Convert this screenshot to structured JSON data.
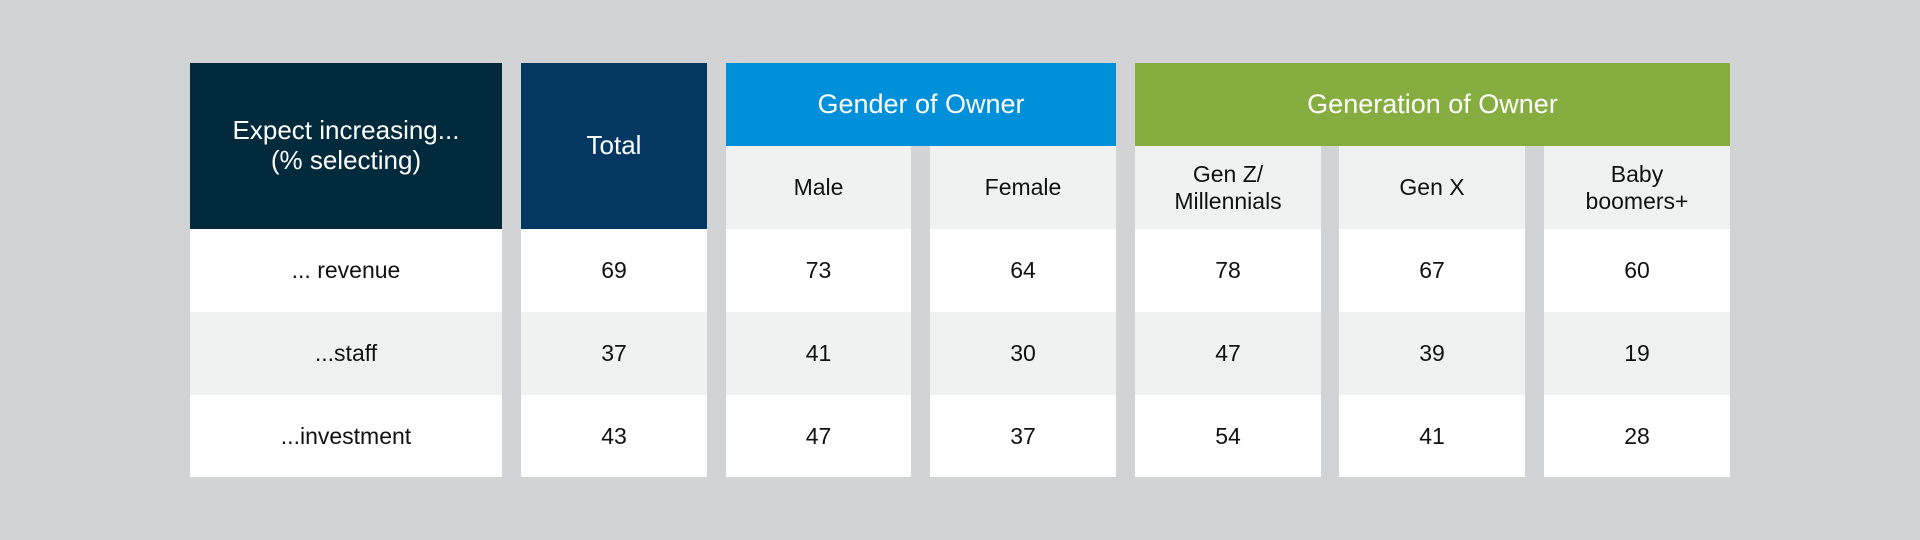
{
  "colors": {
    "background": "#d1d3d4",
    "label_header": "#022a3d",
    "total_header": "#043862",
    "gender_band": "#0090da",
    "generation_band": "#86ad3f",
    "row_alt": "#f0f2f1"
  },
  "chart_data": {
    "type": "table",
    "row_header": "Expect increasing...\n(% selecting)",
    "groups": [
      {
        "name": "Gender of Owner",
        "columns": [
          "Male",
          "Female"
        ]
      },
      {
        "name": "Generation of Owner",
        "columns": [
          "Gen Z/\nMillennials",
          "Gen X",
          "Baby\nboomers+"
        ]
      }
    ],
    "columns": [
      "Total",
      "Male",
      "Female",
      "Gen Z/\nMillennials",
      "Gen X",
      "Baby\nboomers+"
    ],
    "rows": [
      {
        "label": "... revenue",
        "values": [
          69,
          73,
          64,
          78,
          67,
          60
        ]
      },
      {
        "label": "...staff",
        "values": [
          37,
          41,
          30,
          47,
          39,
          19
        ]
      },
      {
        "label": "...investment",
        "values": [
          43,
          47,
          37,
          54,
          41,
          28
        ]
      }
    ]
  }
}
